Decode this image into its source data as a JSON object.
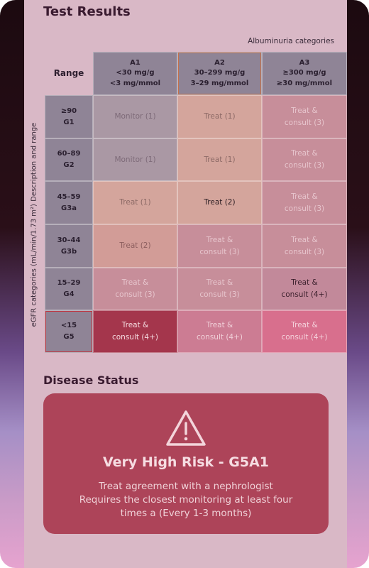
{
  "header": {
    "title": "Test Results"
  },
  "table": {
    "albuminuria_label": "Albuminuria categories",
    "range_label": "Range",
    "egfr_label": "eGFR categories (mL/min/1.73 m²) Description and range",
    "columns": [
      {
        "code": "A1",
        "line1": "<30 mg/g",
        "line2": "<3 mg/mmol"
      },
      {
        "code": "A2",
        "line1": "30–299 mg/g",
        "line2": "3–29 mg/mmol"
      },
      {
        "code": "A3",
        "line1": "≥300 mg/g",
        "line2": "≥30 mg/mmol"
      }
    ],
    "rows": [
      {
        "range": "≥90",
        "code": "G1",
        "cells": [
          {
            "l1": "Monitor (1)",
            "l2": ""
          },
          {
            "l1": "Treat (1)",
            "l2": ""
          },
          {
            "l1": "Treat &",
            "l2": "consult (3)"
          }
        ]
      },
      {
        "range": "60–89",
        "code": "G2",
        "cells": [
          {
            "l1": "Monitor (1)",
            "l2": ""
          },
          {
            "l1": "Treat (1)",
            "l2": ""
          },
          {
            "l1": "Treat &",
            "l2": "consult (3)"
          }
        ]
      },
      {
        "range": "45–59",
        "code": "G3a",
        "cells": [
          {
            "l1": "Treat (1)",
            "l2": ""
          },
          {
            "l1": "Treat (2)",
            "l2": ""
          },
          {
            "l1": "Treat &",
            "l2": "consult (3)"
          }
        ]
      },
      {
        "range": "30–44",
        "code": "G3b",
        "cells": [
          {
            "l1": "Treat (2)",
            "l2": ""
          },
          {
            "l1": "Treat &",
            "l2": "consult (3)"
          },
          {
            "l1": "Treat &",
            "l2": "consult (3)"
          }
        ]
      },
      {
        "range": "15–29",
        "code": "G4",
        "cells": [
          {
            "l1": "Treat &",
            "l2": "consult (3)"
          },
          {
            "l1": "Treat &",
            "l2": "consult (3)"
          },
          {
            "l1": "Treat &",
            "l2": "consult (4+)"
          }
        ]
      },
      {
        "range": "<15",
        "code": "G5",
        "cells": [
          {
            "l1": "Treat &",
            "l2": "consult (4+)"
          },
          {
            "l1": "Treat &",
            "l2": "consult (4+)"
          },
          {
            "l1": "Treat &",
            "l2": "consult (4+)"
          }
        ]
      }
    ]
  },
  "status": {
    "title": "Disease Status",
    "icon": "warning-triangle-icon",
    "risk": "Very High Risk - G5A1",
    "lines": [
      "Treat agreement with a nephrologist",
      "Requires the closest monitoring at least four",
      "times a (Every 1-3 months)"
    ]
  },
  "colors": {
    "card": "#ad4459",
    "highlight": "#c0343e",
    "header_cell": "#8f8496"
  }
}
